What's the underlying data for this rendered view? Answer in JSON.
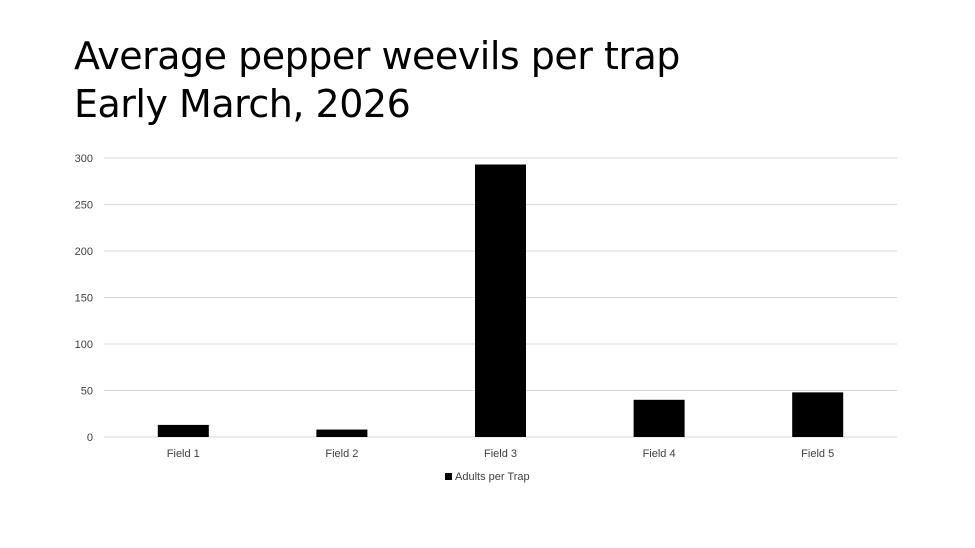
{
  "slide": {
    "title_line1": "Average pepper weevils per trap",
    "title_line2": "Early March, 2026"
  },
  "chart_data": {
    "type": "bar",
    "categories": [
      "Field 1",
      "Field 2",
      "Field 3",
      "Field 4",
      "Field 5"
    ],
    "series": [
      {
        "name": "Adults per Trap",
        "values": [
          13,
          8,
          293,
          40,
          48
        ]
      }
    ],
    "ylim": [
      0,
      300
    ],
    "yticks": [
      0,
      50,
      100,
      150,
      200,
      250,
      300
    ],
    "grid": true,
    "legend_position": "bottom",
    "bar_color": "#000000",
    "grid_color": "#d9d9d9",
    "text_color": "#404040"
  }
}
